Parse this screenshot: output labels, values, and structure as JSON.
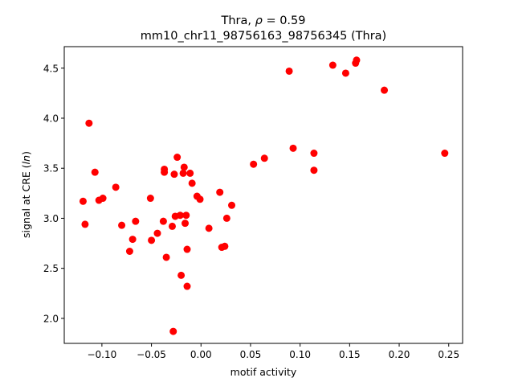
{
  "chart_data": {
    "type": "scatter",
    "title_line1": "Thra, ρ = 0.59",
    "title_line2": "mm10_chr11_98756163_98756345 (Thra)",
    "xlabel": "motif activity",
    "ylabel": "signal at CRE (ln)",
    "xlim": [
      -0.138,
      0.264
    ],
    "ylim": [
      1.75,
      4.715
    ],
    "xticks": [
      -0.1,
      -0.05,
      0.0,
      0.05,
      0.1,
      0.15,
      0.2,
      0.25
    ],
    "xtick_labels": [
      "−0.10",
      "−0.05",
      "0.00",
      "0.05",
      "0.10",
      "0.15",
      "0.20",
      "0.25"
    ],
    "yticks": [
      2.0,
      2.5,
      3.0,
      3.5,
      4.0,
      4.5
    ],
    "ytick_labels": [
      "2.0",
      "2.5",
      "3.0",
      "3.5",
      "4.0",
      "4.5"
    ],
    "grid": false,
    "marker_color": "#ff0000",
    "points": [
      {
        "x": -0.119,
        "y": 3.17
      },
      {
        "x": -0.117,
        "y": 2.94
      },
      {
        "x": -0.113,
        "y": 3.95
      },
      {
        "x": -0.107,
        "y": 3.46
      },
      {
        "x": -0.103,
        "y": 3.18
      },
      {
        "x": -0.099,
        "y": 3.2
      },
      {
        "x": -0.086,
        "y": 3.31
      },
      {
        "x": -0.08,
        "y": 2.93
      },
      {
        "x": -0.072,
        "y": 2.67
      },
      {
        "x": -0.069,
        "y": 2.79
      },
      {
        "x": -0.066,
        "y": 2.97
      },
      {
        "x": -0.051,
        "y": 3.2
      },
      {
        "x": -0.05,
        "y": 2.78
      },
      {
        "x": -0.044,
        "y": 2.85
      },
      {
        "x": -0.038,
        "y": 2.97
      },
      {
        "x": -0.037,
        "y": 3.49
      },
      {
        "x": -0.037,
        "y": 3.46
      },
      {
        "x": -0.035,
        "y": 2.61
      },
      {
        "x": -0.029,
        "y": 2.92
      },
      {
        "x": -0.028,
        "y": 1.87
      },
      {
        "x": -0.027,
        "y": 3.44
      },
      {
        "x": -0.026,
        "y": 3.02
      },
      {
        "x": -0.024,
        "y": 3.61
      },
      {
        "x": -0.021,
        "y": 3.03
      },
      {
        "x": -0.02,
        "y": 2.43
      },
      {
        "x": -0.018,
        "y": 3.45
      },
      {
        "x": -0.017,
        "y": 3.51
      },
      {
        "x": -0.016,
        "y": 2.95
      },
      {
        "x": -0.015,
        "y": 3.03
      },
      {
        "x": -0.014,
        "y": 2.69
      },
      {
        "x": -0.014,
        "y": 2.32
      },
      {
        "x": -0.011,
        "y": 3.45
      },
      {
        "x": -0.009,
        "y": 3.35
      },
      {
        "x": -0.004,
        "y": 3.22
      },
      {
        "x": -0.001,
        "y": 3.19
      },
      {
        "x": 0.008,
        "y": 2.9
      },
      {
        "x": 0.019,
        "y": 3.26
      },
      {
        "x": 0.021,
        "y": 2.71
      },
      {
        "x": 0.024,
        "y": 2.72
      },
      {
        "x": 0.026,
        "y": 3.0
      },
      {
        "x": 0.031,
        "y": 3.13
      },
      {
        "x": 0.053,
        "y": 3.54
      },
      {
        "x": 0.064,
        "y": 3.6
      },
      {
        "x": 0.089,
        "y": 4.47
      },
      {
        "x": 0.093,
        "y": 3.7
      },
      {
        "x": 0.114,
        "y": 3.65
      },
      {
        "x": 0.114,
        "y": 3.48
      },
      {
        "x": 0.133,
        "y": 4.53
      },
      {
        "x": 0.146,
        "y": 4.45
      },
      {
        "x": 0.156,
        "y": 4.55
      },
      {
        "x": 0.157,
        "y": 4.58
      },
      {
        "x": 0.185,
        "y": 4.28
      },
      {
        "x": 0.246,
        "y": 3.65
      }
    ]
  }
}
